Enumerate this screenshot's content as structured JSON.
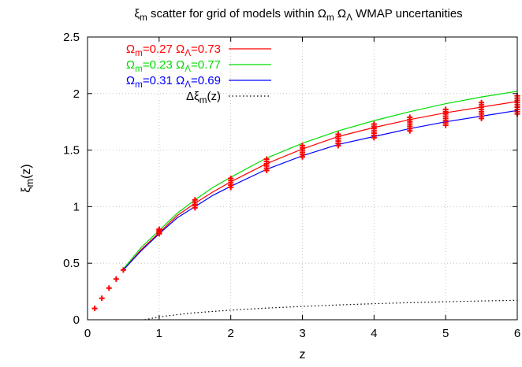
{
  "chart_data": {
    "type": "line",
    "title": {
      "parts": [
        {
          "text": "ξ"
        },
        {
          "text": "m",
          "sub": true
        },
        {
          "text": " scatter for grid of models within Ω"
        },
        {
          "text": "m",
          "sub": true
        },
        {
          "text": " Ω"
        },
        {
          "text": "Λ",
          "sub": true
        },
        {
          "text": " WMAP uncertanities"
        }
      ]
    },
    "xlabel": "z",
    "ylabel": {
      "parts": [
        {
          "text": "ξ"
        },
        {
          "text": "m",
          "sub": true
        },
        {
          "text": "(z)"
        }
      ]
    },
    "xlim": [
      0,
      6
    ],
    "ylim": [
      0,
      2.5
    ],
    "xticks": [
      {
        "value": 0,
        "label": "0"
      },
      {
        "value": 1,
        "label": "1"
      },
      {
        "value": 2,
        "label": "2"
      },
      {
        "value": 3,
        "label": "3"
      },
      {
        "value": 4,
        "label": "4"
      },
      {
        "value": 5,
        "label": "5"
      },
      {
        "value": 6,
        "label": "6"
      }
    ],
    "yticks": [
      {
        "value": 0,
        "label": "0"
      },
      {
        "value": 0.5,
        "label": "0.5"
      },
      {
        "value": 1,
        "label": "1"
      },
      {
        "value": 1.5,
        "label": "1.5"
      },
      {
        "value": 2,
        "label": "2"
      },
      {
        "value": 2.5,
        "label": "2.5"
      }
    ],
    "grid": true,
    "legend_position": "top-left",
    "series": [
      {
        "legend": [
          {
            "text": "Ω"
          },
          {
            "text": "m",
            "sub": true
          },
          {
            "text": "=0.27 Ω"
          },
          {
            "text": "Λ",
            "sub": true
          },
          {
            "text": "=0.73"
          }
        ],
        "color": "#ff0000",
        "style": "solid",
        "x": [
          0.5,
          0.75,
          1,
          1.25,
          1.5,
          1.75,
          2,
          2.5,
          3,
          3.5,
          4,
          4.5,
          5,
          5.5,
          6
        ],
        "y": [
          0.44,
          0.62,
          0.77,
          0.92,
          1.03,
          1.13,
          1.22,
          1.38,
          1.51,
          1.62,
          1.7,
          1.77,
          1.83,
          1.88,
          1.93
        ]
      },
      {
        "legend": [
          {
            "text": "Ω"
          },
          {
            "text": "m",
            "sub": true
          },
          {
            "text": "=0.23 Ω"
          },
          {
            "text": "Λ",
            "sub": true
          },
          {
            "text": "=0.77"
          }
        ],
        "color": "#00dd00",
        "style": "solid",
        "x": [
          0.5,
          0.75,
          1,
          1.25,
          1.5,
          1.75,
          2,
          2.5,
          3,
          3.5,
          4,
          4.5,
          5,
          5.5,
          6
        ],
        "y": [
          0.45,
          0.64,
          0.79,
          0.94,
          1.06,
          1.17,
          1.26,
          1.43,
          1.56,
          1.67,
          1.76,
          1.84,
          1.91,
          1.97,
          2.02
        ]
      },
      {
        "legend": [
          {
            "text": "Ω"
          },
          {
            "text": "m",
            "sub": true
          },
          {
            "text": "=0.31 Ω"
          },
          {
            "text": "Λ",
            "sub": true
          },
          {
            "text": "=0.69"
          }
        ],
        "color": "#0000ff",
        "style": "solid",
        "x": [
          0.5,
          0.75,
          1,
          1.25,
          1.5,
          1.75,
          2,
          2.5,
          3,
          3.5,
          4,
          4.5,
          5,
          5.5,
          6
        ],
        "y": [
          0.44,
          0.61,
          0.76,
          0.9,
          1.0,
          1.1,
          1.18,
          1.33,
          1.45,
          1.55,
          1.62,
          1.69,
          1.75,
          1.8,
          1.85
        ]
      },
      {
        "legend": [
          {
            "text": "Δξ"
          },
          {
            "text": "m",
            "sub": true
          },
          {
            "text": "(z)"
          }
        ],
        "color": "#000000",
        "style": "dotted",
        "x": [
          0.8,
          0.9,
          1,
          1.25,
          1.5,
          2,
          2.5,
          3,
          3.5,
          4,
          4.5,
          5,
          5.5,
          6
        ],
        "y": [
          0.0,
          0.013,
          0.025,
          0.045,
          0.062,
          0.085,
          0.103,
          0.118,
          0.131,
          0.142,
          0.151,
          0.159,
          0.166,
          0.172
        ]
      }
    ],
    "scatter": {
      "marker": "+",
      "color": "#ff0000",
      "low_points": {
        "x": [
          0.1,
          0.2,
          0.3,
          0.4,
          0.5
        ],
        "y": [
          0.1,
          0.19,
          0.28,
          0.36,
          0.44
        ]
      },
      "columns": [
        {
          "x": 1.0,
          "y": [
            0.76,
            0.77,
            0.78,
            0.79,
            0.8
          ]
        },
        {
          "x": 1.5,
          "y": [
            0.99,
            1.01,
            1.02,
            1.04,
            1.06
          ]
        },
        {
          "x": 2.0,
          "y": [
            1.17,
            1.19,
            1.21,
            1.23,
            1.25
          ]
        },
        {
          "x": 2.5,
          "y": [
            1.32,
            1.34,
            1.36,
            1.38,
            1.4,
            1.42
          ]
        },
        {
          "x": 3.0,
          "y": [
            1.44,
            1.46,
            1.48,
            1.5,
            1.52,
            1.54
          ]
        },
        {
          "x": 3.5,
          "y": [
            1.54,
            1.56,
            1.58,
            1.6,
            1.62,
            1.64
          ]
        },
        {
          "x": 4.0,
          "y": [
            1.61,
            1.63,
            1.65,
            1.67,
            1.69,
            1.71,
            1.73
          ]
        },
        {
          "x": 4.5,
          "y": [
            1.67,
            1.69,
            1.71,
            1.73,
            1.75,
            1.77,
            1.79
          ]
        },
        {
          "x": 5.0,
          "y": [
            1.72,
            1.74,
            1.76,
            1.78,
            1.8,
            1.82,
            1.84,
            1.86
          ]
        },
        {
          "x": 5.5,
          "y": [
            1.78,
            1.8,
            1.82,
            1.84,
            1.86,
            1.88,
            1.9,
            1.92
          ]
        },
        {
          "x": 6.0,
          "y": [
            1.82,
            1.84,
            1.86,
            1.88,
            1.9,
            1.92,
            1.94,
            1.96,
            1.98
          ]
        }
      ]
    }
  }
}
